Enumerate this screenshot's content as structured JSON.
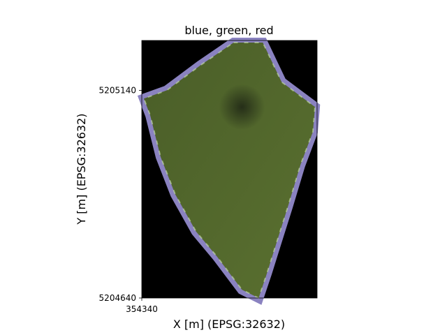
{
  "chart_data": {
    "type": "heatmap",
    "title": "blue, green, red",
    "xlabel": "X [m] (EPSG:32632)",
    "ylabel": "Y [m] (EPSG:32632)",
    "x_ticks": [
      354340
    ],
    "y_ticks": [
      5205140,
      5204640
    ],
    "xlim": [
      354340,
      354760
    ],
    "ylim": [
      5204640,
      5205260
    ],
    "grid": false,
    "legend": "none",
    "image": {
      "kind": "rgb composite",
      "bands": [
        "blue",
        "green",
        "red"
      ],
      "background_color": "#000000",
      "field_polygon": [
        [
          354560,
          5205255
        ],
        [
          354630,
          5205255
        ],
        [
          354675,
          5205160
        ],
        [
          354755,
          5205100
        ],
        [
          354750,
          5205040
        ],
        [
          354720,
          5204960
        ],
        [
          354690,
          5204860
        ],
        [
          354665,
          5204780
        ],
        [
          354640,
          5204700
        ],
        [
          354620,
          5204640
        ],
        [
          354580,
          5204660
        ],
        [
          354520,
          5204740
        ],
        [
          354470,
          5204800
        ],
        [
          354420,
          5204890
        ],
        [
          354385,
          5204980
        ],
        [
          354360,
          5205080
        ],
        [
          354345,
          5205120
        ],
        [
          354400,
          5205140
        ],
        [
          354480,
          5205200
        ]
      ],
      "dark_patch": {
        "center": [
          354580,
          5205100
        ],
        "radius": [
          55,
          55
        ]
      },
      "colors": {
        "field": "#4a5e28",
        "field_dark": "#252e18",
        "field_edge_light": "#5a7030",
        "edge_tint": "#8a82c0",
        "edge_highlight": "#c6e0a8"
      }
    }
  }
}
